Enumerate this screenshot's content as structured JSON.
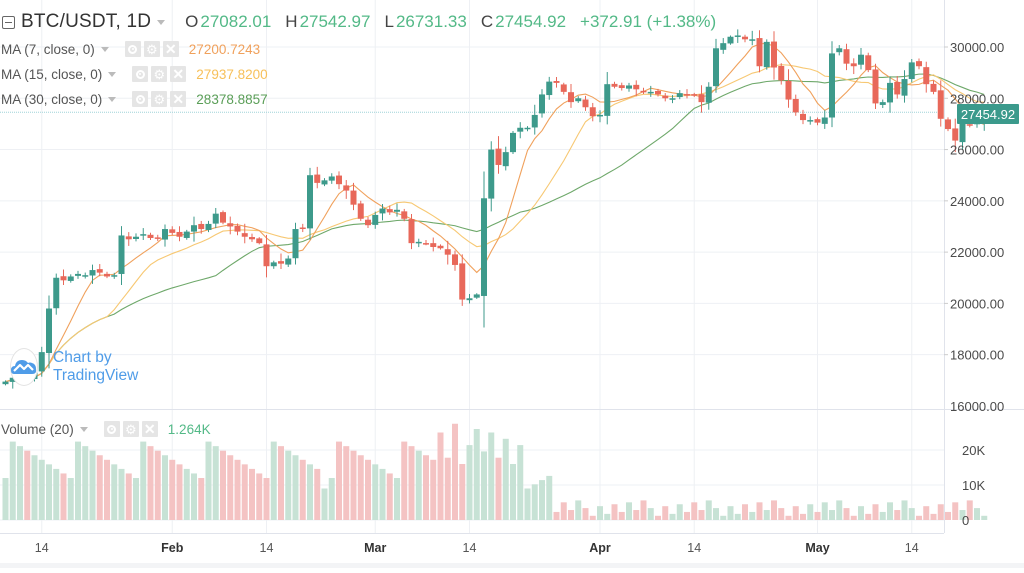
{
  "header": {
    "symbol": "BTC/USDT, 1D",
    "ohlc": [
      {
        "key": "O",
        "value": "27082.01"
      },
      {
        "key": "H",
        "value": "27542.97"
      },
      {
        "key": "L",
        "value": "26731.33"
      },
      {
        "key": "C",
        "value": "27454.92"
      }
    ],
    "change": "+372.91 (+1.38%)"
  },
  "indicators": [
    {
      "label": "MA (7, close, 0)",
      "value": "27200.7243",
      "color": "#f0a15c"
    },
    {
      "label": "MA (15, close, 0)",
      "value": "27937.8200",
      "color": "#f7c873"
    },
    {
      "label": "MA (30, close, 0)",
      "value": "28378.8857",
      "color": "#6ea86a"
    }
  ],
  "volume_legend": {
    "label": "Volume (20)",
    "value": "1.264K",
    "color": "#53b987"
  },
  "watermark": {
    "text": "Chart by TradingView"
  },
  "last_price_tag": "27454.92",
  "colors": {
    "up": "#3d9a8b",
    "down": "#e8685a",
    "vol_up": "#c7e2d5",
    "vol_down": "#f4c3c3",
    "grid": "#eef0f4",
    "price_line": "#9fd3d8",
    "ma7": "#f0a15c",
    "ma15": "#f7c873",
    "ma30": "#6ea86a"
  },
  "chart_data": {
    "type": "candlestick",
    "title": "BTC/USDT, 1D",
    "price_axis": {
      "ticks": [
        "30000.00",
        "28000.00",
        "26000.00",
        "24000.00",
        "22000.00",
        "20000.00",
        "18000.00",
        "16000.00"
      ],
      "range": [
        16000,
        30900
      ]
    },
    "volume_axis": {
      "ticks": [
        "20K",
        "10K",
        "0"
      ],
      "range": [
        0,
        28000
      ]
    },
    "time_axis": {
      "ticks": [
        {
          "label": "14",
          "index": 5,
          "bold": false
        },
        {
          "label": "Feb",
          "index": 23,
          "bold": true
        },
        {
          "label": "14",
          "index": 36,
          "bold": false
        },
        {
          "label": "Mar",
          "index": 51,
          "bold": true
        },
        {
          "label": "14",
          "index": 64,
          "bold": false
        },
        {
          "label": "Apr",
          "index": 82,
          "bold": true
        },
        {
          "label": "14",
          "index": 95,
          "bold": false
        },
        {
          "label": "May",
          "index": 112,
          "bold": true
        },
        {
          "label": "14",
          "index": 125,
          "bold": false
        }
      ]
    },
    "legend": [
      "MA (7, close, 0)",
      "MA (15, close, 0)",
      "MA (30, close, 0)",
      "Volume (20)"
    ],
    "close": [
      16950,
      17100,
      17150,
      17050,
      17300,
      18100,
      19800,
      21000,
      20900,
      21050,
      21150,
      21100,
      21300,
      21200,
      21050,
      21100,
      22650,
      22500,
      22600,
      22700,
      22550,
      22550,
      22900,
      22750,
      22600,
      22800,
      23050,
      22900,
      23100,
      23500,
      23150,
      23000,
      22800,
      22600,
      22500,
      22350,
      21450,
      21600,
      21550,
      21750,
      22900,
      22950,
      25000,
      24700,
      24800,
      24950,
      24650,
      24400,
      23850,
      23300,
      23050,
      23450,
      23700,
      23550,
      23650,
      23300,
      22350,
      22400,
      22350,
      22200,
      22150,
      21900,
      21500,
      20150,
      20200,
      20350,
      24100,
      26000,
      25400,
      25900,
      26650,
      26850,
      26850,
      27350,
      28150,
      28650,
      28600,
      28250,
      27850,
      28000,
      27650,
      27300,
      27350,
      28550,
      28450,
      28400,
      28500,
      28350,
      28250,
      28250,
      28150,
      28000,
      28000,
      28200,
      28150,
      28100,
      27850,
      28450,
      29950,
      30150,
      30400,
      30450,
      30300,
      30300,
      29250,
      30200,
      29200,
      28700,
      27950,
      27450,
      27150,
      27150,
      27050,
      27250,
      29750,
      29950,
      29350,
      29250,
      29700,
      29100,
      27800,
      27850,
      28600,
      28150,
      28750,
      29400,
      29250,
      28550,
      28250,
      27200,
      26800,
      26350,
      27000,
      26950,
      27100,
      27450
    ],
    "volume_note": "Volume bars follow candle direction; peak ~28K near Mar 10, tapering to ~1-5K in Apr-May."
  }
}
